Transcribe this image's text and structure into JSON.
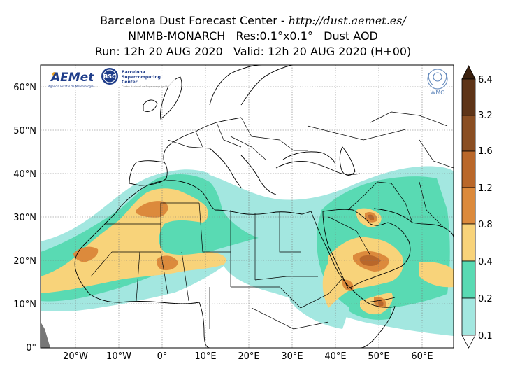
{
  "header": {
    "line1_prefix": "Barcelona Dust Forecast Center - ",
    "line1_url": "http://dust.aemet.es/",
    "line2": "NMMB-MONARCH   Res:0.1°x0.1°   Dust AOD",
    "line3": "Run: 12h 20 AUG 2020   Valid: 12h 20 AUG 2020 (H+00)"
  },
  "map": {
    "lat_ticks": [
      "60°N",
      "50°N",
      "40°N",
      "30°N",
      "20°N",
      "10°N",
      "0°"
    ],
    "lon_ticks": [
      "20°W",
      "10°W",
      "0°",
      "10°E",
      "20°E",
      "30°E",
      "40°E",
      "50°E",
      "60°E"
    ],
    "lat_range": [
      0,
      65
    ],
    "lon_range": [
      -28,
      67
    ],
    "grid": true,
    "background_color": "#ffffff",
    "coastline_color": "#000000"
  },
  "logos": {
    "aemet": {
      "name": "AEMet",
      "subtitle": "Agencia Estatal de Meteorología"
    },
    "bsc": {
      "badge": "BSC",
      "name_line1": "Barcelona",
      "name_line2": "Supercomputing",
      "name_line3": "Center",
      "subtitle": "Centro Nacional de Supercomputación"
    },
    "wmo": {
      "name": "WMO"
    }
  },
  "colorbar": {
    "levels": [
      "0.1",
      "0.2",
      "0.4",
      "0.8",
      "1.2",
      "1.6",
      "3.2",
      "6.4"
    ],
    "colors": [
      "#a3e7e0",
      "#59dab3",
      "#f8d37a",
      "#dc8a3c",
      "#b9672a",
      "#8a4e22",
      "#5e3417",
      "#3a200e"
    ]
  }
}
